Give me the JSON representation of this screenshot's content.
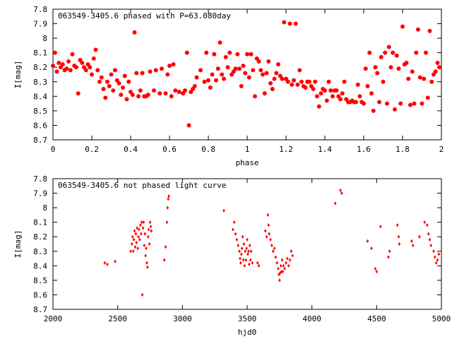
{
  "chart_data": [
    {
      "type": "scatter",
      "title": "063549-3405.6 phased with P=63.080day",
      "xlabel": "phase",
      "ylabel": "I[mag]",
      "xlim": [
        0,
        2
      ],
      "ylim": [
        8.7,
        7.8
      ],
      "y_inverted": true,
      "grid": false,
      "xticks": [
        "0",
        "0.2",
        "0.4",
        "0.6",
        "0.8",
        "1",
        "1.2",
        "1.4",
        "1.6",
        "1.8",
        "2"
      ],
      "yticks": [
        "7.8",
        "7.9",
        "8",
        "8.1",
        "8.2",
        "8.3",
        "8.4",
        "8.5",
        "8.6",
        "8.7"
      ],
      "color": "#ff0000",
      "marker": "filled-circle",
      "points": [
        [
          0.0,
          8.19
        ],
        [
          0.01,
          8.1
        ],
        [
          0.02,
          8.23
        ],
        [
          0.03,
          8.17
        ],
        [
          0.04,
          8.2
        ],
        [
          0.05,
          8.18
        ],
        [
          0.06,
          8.22
        ],
        [
          0.07,
          8.21
        ],
        [
          0.08,
          8.16
        ],
        [
          0.09,
          8.22
        ],
        [
          0.1,
          8.11
        ],
        [
          0.11,
          8.19
        ],
        [
          0.12,
          8.2
        ],
        [
          0.13,
          8.38
        ],
        [
          0.14,
          8.15
        ],
        [
          0.15,
          8.17
        ],
        [
          0.16,
          8.2
        ],
        [
          0.17,
          8.22
        ],
        [
          0.18,
          8.18
        ],
        [
          0.19,
          8.2
        ],
        [
          0.2,
          8.25
        ],
        [
          0.21,
          8.14
        ],
        [
          0.22,
          8.08
        ],
        [
          0.23,
          8.22
        ],
        [
          0.24,
          8.3
        ],
        [
          0.25,
          8.27
        ],
        [
          0.26,
          8.35
        ],
        [
          0.27,
          8.41
        ],
        [
          0.28,
          8.3
        ],
        [
          0.29,
          8.33
        ],
        [
          0.3,
          8.25
        ],
        [
          0.31,
          8.36
        ],
        [
          0.32,
          8.22
        ],
        [
          0.33,
          8.29
        ],
        [
          0.34,
          8.31
        ],
        [
          0.35,
          8.39
        ],
        [
          0.36,
          8.34
        ],
        [
          0.37,
          8.26
        ],
        [
          0.38,
          8.42
        ],
        [
          0.39,
          8.3
        ],
        [
          0.4,
          8.37
        ],
        [
          0.41,
          8.39
        ],
        [
          0.42,
          7.96
        ],
        [
          0.43,
          8.24
        ],
        [
          0.44,
          8.4
        ],
        [
          0.45,
          8.36
        ],
        [
          0.46,
          8.24
        ],
        [
          0.47,
          8.4
        ],
        [
          0.48,
          8.4
        ],
        [
          0.49,
          8.39
        ],
        [
          0.5,
          8.23
        ],
        [
          0.52,
          8.36
        ],
        [
          0.53,
          8.22
        ],
        [
          0.55,
          8.38
        ],
        [
          0.56,
          8.21
        ],
        [
          0.58,
          8.38
        ],
        [
          0.59,
          8.25
        ],
        [
          0.6,
          8.19
        ],
        [
          0.61,
          8.4
        ],
        [
          0.62,
          8.18
        ],
        [
          0.63,
          8.36
        ],
        [
          0.65,
          8.37
        ],
        [
          0.67,
          8.38
        ],
        [
          0.68,
          8.36
        ],
        [
          0.69,
          8.1
        ],
        [
          0.7,
          8.6
        ],
        [
          0.71,
          8.37
        ],
        [
          0.72,
          8.35
        ],
        [
          0.73,
          8.33
        ],
        [
          0.74,
          8.27
        ],
        [
          0.76,
          8.22
        ],
        [
          0.78,
          8.3
        ],
        [
          0.79,
          8.1
        ],
        [
          0.8,
          8.29
        ],
        [
          0.81,
          8.34
        ],
        [
          0.82,
          8.25
        ],
        [
          0.83,
          8.11
        ],
        [
          0.84,
          8.29
        ],
        [
          0.85,
          8.21
        ],
        [
          0.86,
          8.03
        ],
        [
          0.87,
          8.25
        ],
        [
          0.88,
          8.28
        ],
        [
          0.89,
          8.13
        ],
        [
          0.9,
          8.2
        ],
        [
          0.91,
          8.1
        ],
        [
          0.92,
          8.25
        ],
        [
          0.93,
          8.23
        ],
        [
          0.94,
          8.21
        ],
        [
          0.95,
          8.11
        ],
        [
          0.96,
          8.21
        ],
        [
          0.97,
          8.33
        ],
        [
          0.98,
          8.19
        ],
        [
          0.99,
          8.24
        ],
        [
          1.0,
          8.11
        ],
        [
          1.01,
          8.27
        ],
        [
          1.02,
          8.11
        ],
        [
          1.03,
          8.22
        ],
        [
          1.04,
          8.4
        ],
        [
          1.05,
          8.14
        ],
        [
          1.06,
          8.16
        ],
        [
          1.07,
          8.22
        ],
        [
          1.08,
          8.25
        ],
        [
          1.09,
          8.38
        ],
        [
          1.1,
          8.24
        ],
        [
          1.11,
          8.16
        ],
        [
          1.12,
          8.31
        ],
        [
          1.13,
          8.35
        ],
        [
          1.14,
          8.28
        ],
        [
          1.15,
          8.24
        ],
        [
          1.16,
          8.18
        ],
        [
          1.17,
          8.26
        ],
        [
          1.18,
          8.28
        ],
        [
          1.19,
          7.89
        ],
        [
          1.2,
          8.28
        ],
        [
          1.21,
          8.3
        ],
        [
          1.22,
          7.9
        ],
        [
          1.23,
          8.32
        ],
        [
          1.24,
          8.29
        ],
        [
          1.25,
          7.9
        ],
        [
          1.26,
          8.32
        ],
        [
          1.27,
          8.22
        ],
        [
          1.28,
          8.3
        ],
        [
          1.29,
          8.33
        ],
        [
          1.3,
          8.34
        ],
        [
          1.31,
          8.3
        ],
        [
          1.32,
          8.3
        ],
        [
          1.33,
          8.33
        ],
        [
          1.34,
          8.35
        ],
        [
          1.35,
          8.3
        ],
        [
          1.36,
          8.4
        ],
        [
          1.37,
          8.47
        ],
        [
          1.38,
          8.38
        ],
        [
          1.39,
          8.35
        ],
        [
          1.4,
          8.36
        ],
        [
          1.41,
          8.43
        ],
        [
          1.42,
          8.3
        ],
        [
          1.43,
          8.36
        ],
        [
          1.44,
          8.4
        ],
        [
          1.45,
          8.36
        ],
        [
          1.46,
          8.36
        ],
        [
          1.47,
          8.4
        ],
        [
          1.48,
          8.42
        ],
        [
          1.49,
          8.38
        ],
        [
          1.5,
          8.3
        ],
        [
          1.51,
          8.42
        ],
        [
          1.52,
          8.44
        ],
        [
          1.53,
          8.44
        ],
        [
          1.54,
          8.43
        ],
        [
          1.55,
          8.44
        ],
        [
          1.56,
          8.44
        ],
        [
          1.57,
          8.32
        ],
        [
          1.58,
          8.4
        ],
        [
          1.59,
          8.44
        ],
        [
          1.6,
          8.45
        ],
        [
          1.61,
          8.21
        ],
        [
          1.62,
          8.33
        ],
        [
          1.63,
          8.1
        ],
        [
          1.64,
          8.38
        ],
        [
          1.65,
          8.5
        ],
        [
          1.66,
          8.2
        ],
        [
          1.67,
          8.24
        ],
        [
          1.68,
          8.44
        ],
        [
          1.69,
          8.13
        ],
        [
          1.7,
          8.3
        ],
        [
          1.71,
          8.1
        ],
        [
          1.72,
          8.45
        ],
        [
          1.73,
          8.06
        ],
        [
          1.74,
          8.2
        ],
        [
          1.75,
          8.1
        ],
        [
          1.76,
          8.49
        ],
        [
          1.77,
          8.12
        ],
        [
          1.78,
          8.21
        ],
        [
          1.79,
          8.45
        ],
        [
          1.8,
          7.92
        ],
        [
          1.81,
          8.18
        ],
        [
          1.82,
          8.17
        ],
        [
          1.83,
          8.28
        ],
        [
          1.84,
          8.46
        ],
        [
          1.85,
          8.23
        ],
        [
          1.86,
          8.45
        ],
        [
          1.87,
          8.1
        ],
        [
          1.88,
          7.94
        ],
        [
          1.89,
          8.27
        ],
        [
          1.9,
          8.45
        ],
        [
          1.91,
          8.28
        ],
        [
          1.92,
          8.1
        ],
        [
          1.93,
          8.41
        ],
        [
          1.94,
          7.95
        ],
        [
          1.95,
          8.3
        ],
        [
          1.96,
          8.25
        ],
        [
          1.97,
          8.23
        ],
        [
          1.98,
          8.17
        ],
        [
          1.99,
          8.2
        ]
      ]
    },
    {
      "type": "scatter",
      "title": "063549-3405.6 not phased light curve",
      "xlabel": "hjd0",
      "ylabel": "I[mag]",
      "xlim": [
        2000,
        5000
      ],
      "ylim": [
        8.7,
        7.8
      ],
      "y_inverted": true,
      "grid": false,
      "xticks": [
        "2000",
        "2500",
        "3000",
        "3500",
        "4000",
        "4500",
        "5000"
      ],
      "yticks": [
        "7.8",
        "7.9",
        "8",
        "8.1",
        "8.2",
        "8.3",
        "8.4",
        "8.5",
        "8.6",
        "8.7"
      ],
      "color": "#ff0000",
      "marker": "small-diamond",
      "points": [
        [
          2400,
          8.38
        ],
        [
          2420,
          8.39
        ],
        [
          2480,
          8.37
        ],
        [
          2600,
          8.3
        ],
        [
          2610,
          8.25
        ],
        [
          2615,
          8.2
        ],
        [
          2620,
          8.3
        ],
        [
          2625,
          8.22
        ],
        [
          2630,
          8.16
        ],
        [
          2635,
          8.27
        ],
        [
          2640,
          8.18
        ],
        [
          2645,
          8.24
        ],
        [
          2650,
          8.14
        ],
        [
          2655,
          8.28
        ],
        [
          2660,
          8.2
        ],
        [
          2665,
          8.15
        ],
        [
          2670,
          8.22
        ],
        [
          2675,
          8.12
        ],
        [
          2680,
          8.18
        ],
        [
          2685,
          8.1
        ],
        [
          2690,
          8.6
        ],
        [
          2695,
          8.14
        ],
        [
          2700,
          8.1
        ],
        [
          2705,
          8.26
        ],
        [
          2710,
          8.18
        ],
        [
          2715,
          8.33
        ],
        [
          2720,
          8.28
        ],
        [
          2725,
          8.38
        ],
        [
          2730,
          8.41
        ],
        [
          2735,
          8.2
        ],
        [
          2740,
          8.15
        ],
        [
          2745,
          8.25
        ],
        [
          2750,
          8.1
        ],
        [
          2755,
          8.13
        ],
        [
          2760,
          8.16
        ],
        [
          2860,
          8.36
        ],
        [
          2870,
          8.27
        ],
        [
          2880,
          8.1
        ],
        [
          2885,
          8.0
        ],
        [
          2890,
          7.94
        ],
        [
          2895,
          7.92
        ],
        [
          3320,
          8.02
        ],
        [
          3390,
          8.15
        ],
        [
          3400,
          8.1
        ],
        [
          3410,
          8.18
        ],
        [
          3420,
          8.22
        ],
        [
          3430,
          8.26
        ],
        [
          3440,
          8.3
        ],
        [
          3445,
          8.35
        ],
        [
          3450,
          8.38
        ],
        [
          3455,
          8.32
        ],
        [
          3460,
          8.28
        ],
        [
          3465,
          8.2
        ],
        [
          3470,
          8.36
        ],
        [
          3475,
          8.25
        ],
        [
          3480,
          8.4
        ],
        [
          3485,
          8.3
        ],
        [
          3490,
          8.36
        ],
        [
          3495,
          8.28
        ],
        [
          3500,
          8.22
        ],
        [
          3505,
          8.32
        ],
        [
          3510,
          8.3
        ],
        [
          3515,
          8.39
        ],
        [
          3520,
          8.26
        ],
        [
          3525,
          8.36
        ],
        [
          3530,
          8.3
        ],
        [
          3540,
          8.38
        ],
        [
          3580,
          8.38
        ],
        [
          3590,
          8.4
        ],
        [
          3640,
          8.16
        ],
        [
          3650,
          8.2
        ],
        [
          3660,
          8.05
        ],
        [
          3665,
          8.12
        ],
        [
          3670,
          8.18
        ],
        [
          3680,
          8.22
        ],
        [
          3690,
          8.26
        ],
        [
          3700,
          8.3
        ],
        [
          3710,
          8.28
        ],
        [
          3720,
          8.34
        ],
        [
          3730,
          8.38
        ],
        [
          3740,
          8.42
        ],
        [
          3745,
          8.46
        ],
        [
          3750,
          8.5
        ],
        [
          3755,
          8.45
        ],
        [
          3760,
          8.4
        ],
        [
          3765,
          8.44
        ],
        [
          3770,
          8.36
        ],
        [
          3775,
          8.44
        ],
        [
          3780,
          8.4
        ],
        [
          3790,
          8.42
        ],
        [
          3800,
          8.38
        ],
        [
          3810,
          8.35
        ],
        [
          3820,
          8.4
        ],
        [
          3830,
          8.36
        ],
        [
          3840,
          8.3
        ],
        [
          3850,
          8.33
        ],
        [
          4180,
          7.97
        ],
        [
          4220,
          7.88
        ],
        [
          4230,
          7.9
        ],
        [
          4430,
          8.23
        ],
        [
          4460,
          8.28
        ],
        [
          4490,
          8.42
        ],
        [
          4500,
          8.44
        ],
        [
          4530,
          8.13
        ],
        [
          4590,
          8.34
        ],
        [
          4600,
          8.3
        ],
        [
          4660,
          8.12
        ],
        [
          4670,
          8.2
        ],
        [
          4675,
          8.25
        ],
        [
          4770,
          8.23
        ],
        [
          4780,
          8.26
        ],
        [
          4830,
          8.2
        ],
        [
          4870,
          8.1
        ],
        [
          4890,
          8.12
        ],
        [
          4900,
          8.18
        ],
        [
          4910,
          8.22
        ],
        [
          4920,
          8.26
        ],
        [
          4940,
          8.3
        ],
        [
          4950,
          8.34
        ],
        [
          4960,
          8.38
        ],
        [
          4970,
          8.36
        ],
        [
          4980,
          8.32
        ]
      ]
    }
  ]
}
